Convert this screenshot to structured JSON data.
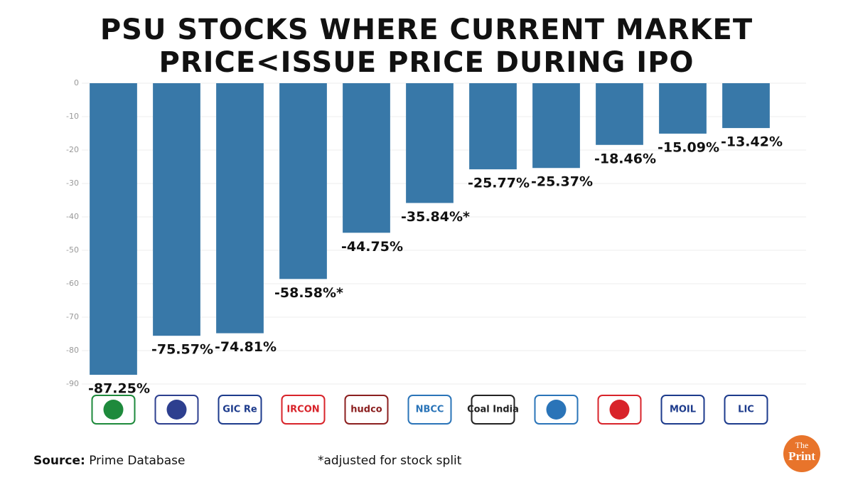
{
  "chart_data": {
    "type": "bar",
    "title": [
      "PSU STOCKS WHERE CURRENT MARKET",
      "PRICE<ISSUE PRICE DURING IPO"
    ],
    "categories": [
      null,
      null,
      "GIC Re",
      "IRCON",
      "hudco",
      "NBCC",
      "Coal India",
      null,
      null,
      "MOIL",
      "LIC"
    ],
    "category_colors": [
      "#1e8a3c",
      "#2d3f8f",
      "#1d3b8c",
      "#d8232a",
      "#8b1f1f",
      "#2a74b8",
      "#222222",
      "#2a74b8",
      "#d8232a",
      "#1d3b8c",
      "#1d3b8c"
    ],
    "values": [
      -87.25,
      -75.57,
      -74.81,
      -58.58,
      -44.75,
      -35.84,
      -25.77,
      -25.37,
      -18.46,
      -15.09,
      -13.42
    ],
    "value_labels": [
      "-87.25%",
      "-75.57%",
      "-74.81%",
      "-58.58%*",
      "-44.75%",
      "-35.84%*",
      "-25.77%",
      "-25.37%",
      "-18.46%",
      "-15.09%",
      "-13.42%"
    ],
    "color": "#3878a8",
    "ylim": [
      -90,
      0
    ],
    "yticks": [
      0,
      -10,
      -20,
      -30,
      -40,
      -50,
      -60,
      -70,
      -80,
      -90
    ],
    "grid": true,
    "source_label": "Source:",
    "source": "Prime Database",
    "footnote": "*adjusted for stock split",
    "brand": [
      "The",
      "Print"
    ]
  }
}
